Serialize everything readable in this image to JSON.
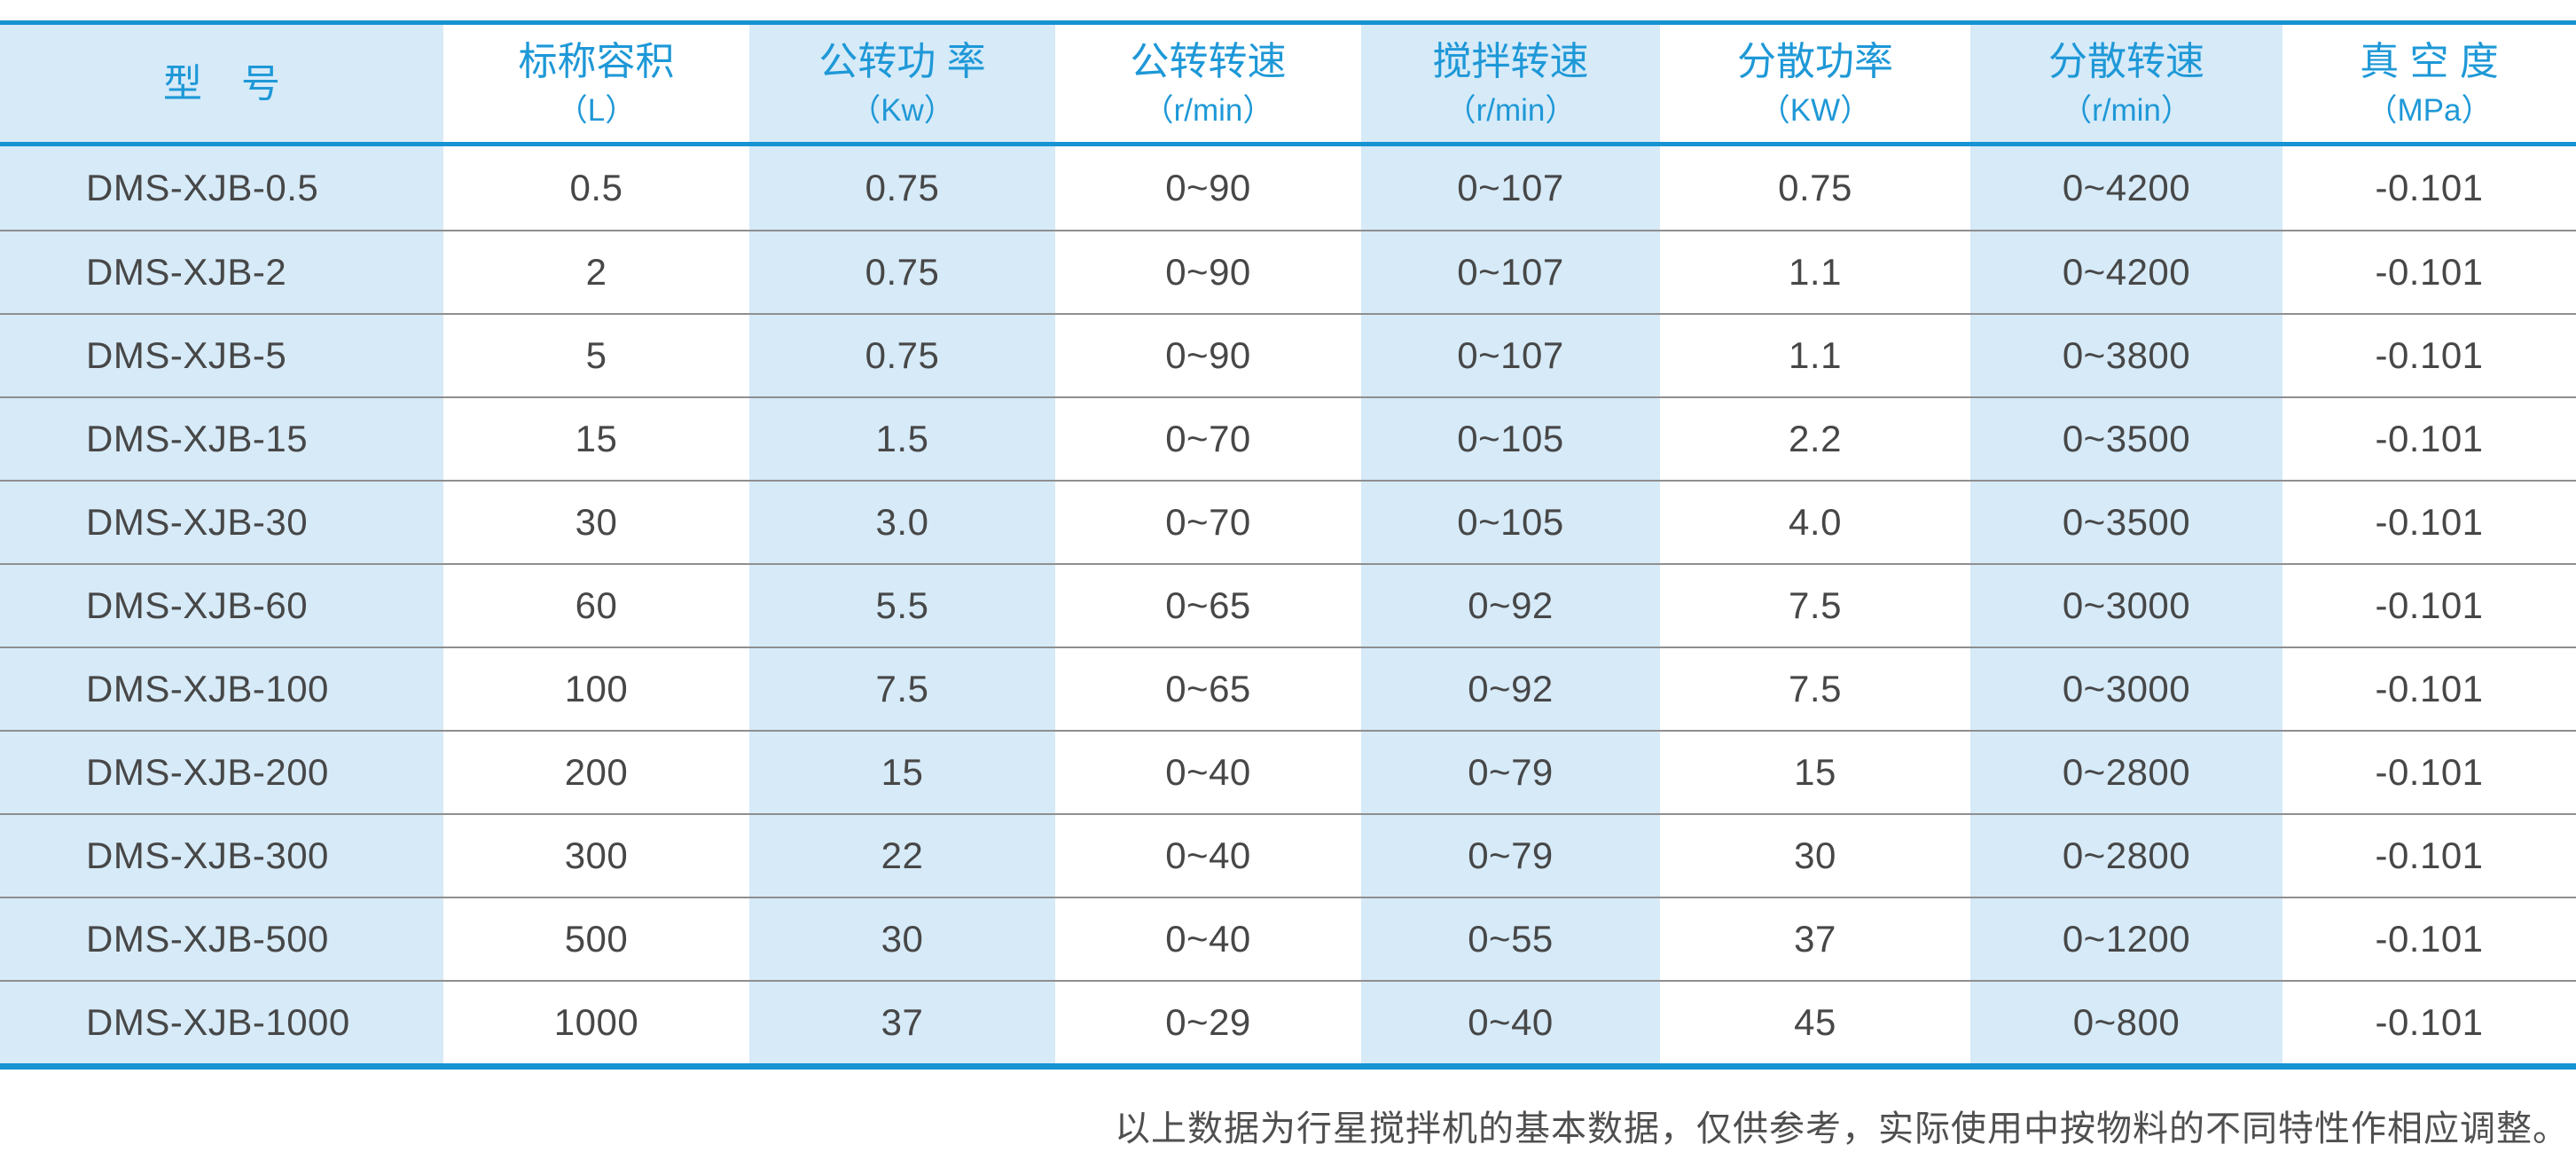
{
  "table": {
    "columns": [
      {
        "label": "型　号",
        "unit": ""
      },
      {
        "label": "标称容积",
        "unit": "（L）"
      },
      {
        "label": "公转功 率",
        "unit": "（Kw）"
      },
      {
        "label": "公转转速",
        "unit": "（r/min）"
      },
      {
        "label": "搅拌转速",
        "unit": "（r/min）"
      },
      {
        "label": "分散功率",
        "unit": "（KW）"
      },
      {
        "label": "分散转速",
        "unit": "（r/min）"
      },
      {
        "label": "真 空 度",
        "unit": "（MPa）"
      }
    ],
    "rows": [
      [
        "DMS-XJB-0.5",
        "0.5",
        "0.75",
        "0~90",
        "0~107",
        "0.75",
        "0~4200",
        "-0.101"
      ],
      [
        "DMS-XJB-2",
        "2",
        "0.75",
        "0~90",
        "0~107",
        "1.1",
        "0~4200",
        "-0.101"
      ],
      [
        "DMS-XJB-5",
        "5",
        "0.75",
        "0~90",
        "0~107",
        "1.1",
        "0~3800",
        "-0.101"
      ],
      [
        "DMS-XJB-15",
        "15",
        "1.5",
        "0~70",
        "0~105",
        "2.2",
        "0~3500",
        "-0.101"
      ],
      [
        "DMS-XJB-30",
        "30",
        "3.0",
        "0~70",
        "0~105",
        "4.0",
        "0~3500",
        "-0.101"
      ],
      [
        "DMS-XJB-60",
        "60",
        "5.5",
        "0~65",
        "0~92",
        "7.5",
        "0~3000",
        "-0.101"
      ],
      [
        "DMS-XJB-100",
        "100",
        "7.5",
        "0~65",
        "0~92",
        "7.5",
        "0~3000",
        "-0.101"
      ],
      [
        "DMS-XJB-200",
        "200",
        "15",
        "0~40",
        "0~79",
        "15",
        "0~2800",
        "-0.101"
      ],
      [
        "DMS-XJB-300",
        "300",
        "22",
        "0~40",
        "0~79",
        "30",
        "0~2800",
        "-0.101"
      ],
      [
        "DMS-XJB-500",
        "500",
        "30",
        "0~40",
        "0~55",
        "37",
        "0~1200",
        "-0.101"
      ],
      [
        "DMS-XJB-1000",
        "1000",
        "37",
        "0~29",
        "0~40",
        "45",
        "0~800",
        "-0.101"
      ]
    ]
  },
  "note": "以上数据为行星搅拌机的基本数据，仅供参考，实际使用中按物料的不同特性作相应调整。",
  "colors": {
    "accent_blue": "#1593d2",
    "header_text_blue": "#1e98d7",
    "stripe_light_blue": "#d6eaf8",
    "body_text_gray": "#474747",
    "row_separator_gray": "#8f8f8f",
    "note_text_gray": "#4f4f4f"
  }
}
